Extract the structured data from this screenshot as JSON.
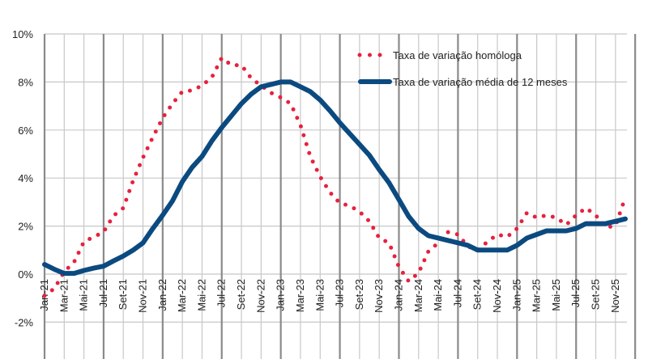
{
  "chart_data": {
    "type": "line",
    "title": "",
    "xlabel": "",
    "ylabel": "",
    "ylim": [
      -2,
      10
    ],
    "ytick_step": 2,
    "yticks": [
      "-2%",
      "0%",
      "2%",
      "4%",
      "6%",
      "8%",
      "10%"
    ],
    "grid": true,
    "legend_position": "top-right",
    "x_tick_labels": [
      "Jan-21",
      "Mar-21",
      "Mai-21",
      "Jul-21",
      "Set-21",
      "Nov-21",
      "Jan-22",
      "Mar-22",
      "Mai-22",
      "Jul-22",
      "Set-22",
      "Nov-22",
      "Jan-23",
      "Mar-23",
      "Mai-23",
      "Jul-23",
      "Set-23",
      "Nov-23",
      "Jan-24",
      "Mar-24",
      "Mai-24",
      "Jul-24",
      "Set-24",
      "Nov-24",
      "Jan-25",
      "Mar-25",
      "Mai-25",
      "Jul-25",
      "Set-25",
      "Nov-25"
    ],
    "x_start": "Jan-21",
    "x_end": "Dez-25",
    "series": [
      {
        "name": "Taxa de variação homóloga",
        "style": "dotted",
        "color": "#e8203e",
        "values": [
          -0.9,
          -0.6,
          0.1,
          0.5,
          1.35,
          1.55,
          1.75,
          2.43,
          2.75,
          3.9,
          4.85,
          5.7,
          6.5,
          7.1,
          7.6,
          7.65,
          7.85,
          8.2,
          9.0,
          8.7,
          8.7,
          8.15,
          7.85,
          7.55,
          7.35,
          7.1,
          6.2,
          4.9,
          4.05,
          3.4,
          2.95,
          2.85,
          2.6,
          2.2,
          1.5,
          1.3,
          0.3,
          -0.3,
          0.05,
          0.95,
          1.3,
          1.75,
          1.65,
          1.15,
          1.0,
          1.35,
          1.65,
          1.55,
          1.9,
          2.55,
          2.35,
          2.45,
          2.35,
          2.05,
          2.45,
          2.75,
          2.45,
          1.95,
          2.0,
          3.2
        ]
      },
      {
        "name": "Taxa de variação média de 12 meses",
        "style": "solid",
        "color": "#0b4a80",
        "values": [
          0.4,
          0.2,
          0.03,
          0.03,
          0.15,
          0.25,
          0.33,
          0.55,
          0.75,
          1.0,
          1.3,
          1.9,
          2.45,
          3.05,
          3.85,
          4.45,
          4.9,
          5.55,
          6.1,
          6.6,
          7.1,
          7.5,
          7.8,
          7.9,
          8.0,
          8.0,
          7.8,
          7.6,
          7.25,
          6.8,
          6.3,
          5.85,
          5.4,
          4.95,
          4.35,
          3.8,
          3.1,
          2.4,
          1.9,
          1.6,
          1.5,
          1.4,
          1.3,
          1.2,
          1.0,
          1.0,
          1.0,
          1.0,
          1.2,
          1.5,
          1.65,
          1.8,
          1.8,
          1.8,
          1.9,
          2.1,
          2.1,
          2.1,
          2.2,
          2.3
        ]
      }
    ]
  },
  "legend": {
    "items": [
      "Taxa de variação homóloga",
      "Taxa de variação média de 12 meses"
    ]
  },
  "colors": {
    "grid_light": "#c8c8c8",
    "grid_dark": "#8a8a8a"
  }
}
